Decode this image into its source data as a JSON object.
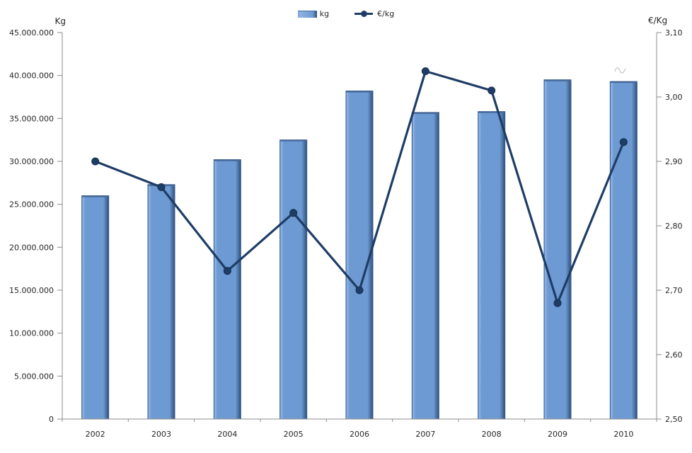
{
  "chart_data": {
    "type": "combo (bar + line)",
    "title": "",
    "categories": [
      "2002",
      "2003",
      "2004",
      "2005",
      "2006",
      "2007",
      "2008",
      "2009",
      "2010"
    ],
    "series": [
      {
        "name": "kg",
        "type": "bar",
        "axis": "left",
        "values": [
          26000000,
          27300000,
          30200000,
          32500000,
          38200000,
          35700000,
          35800000,
          39500000,
          39300000
        ]
      },
      {
        "name": "€/kg",
        "type": "line",
        "axis": "right",
        "values": [
          2.9,
          2.86,
          2.73,
          2.82,
          2.7,
          3.04,
          3.01,
          2.68,
          2.93
        ]
      }
    ],
    "left_axis": {
      "title": "Kg",
      "min": 0,
      "max": 45000000,
      "step": 5000000,
      "tick_values": [
        45000000,
        40000000,
        35000000,
        30000000,
        25000000,
        20000000,
        15000000,
        10000000,
        5000000,
        0
      ],
      "tick_labels": [
        "45.000.000",
        "40.000.000",
        "35.000.000",
        "30.000.000",
        "25.000.000",
        "20.000.000",
        "15.000.000",
        "10.000.000",
        "5.000.000",
        "0"
      ]
    },
    "right_axis": {
      "title": "€/Kg",
      "min": 2.5,
      "max": 3.1,
      "step": 0.1,
      "tick_values": [
        3.1,
        3.0,
        2.9,
        2.8,
        2.7,
        2.6,
        2.5
      ],
      "tick_labels": [
        "3,10",
        "3,00",
        "2,90",
        "2,80",
        "2,70",
        "2,60",
        "2,50"
      ]
    },
    "legend": {
      "position": "top",
      "items": [
        {
          "label": "kg",
          "swatch": "bar"
        },
        {
          "label": "€/kg",
          "swatch": "line-marker"
        }
      ]
    },
    "grid": false,
    "annotations": [
      {
        "name": "faint-squiggle",
        "near_category": "2010",
        "desc": "small light-gray squiggle artifact above the 2010 bar"
      }
    ],
    "colors": {
      "bar": "#6D9AD2",
      "bar_highlight": "#8FB2E2",
      "bar_dark_edge": "#2F4F79",
      "bar_outline": "#3A5C8C",
      "bar_top_edge": "#44689A",
      "line": "#1E3D66",
      "marker_stroke": "#16304F",
      "axis": "#8C8C8C",
      "text": "#262626",
      "artifact": "#C4C4C4",
      "background": "#FFFFFF"
    }
  }
}
